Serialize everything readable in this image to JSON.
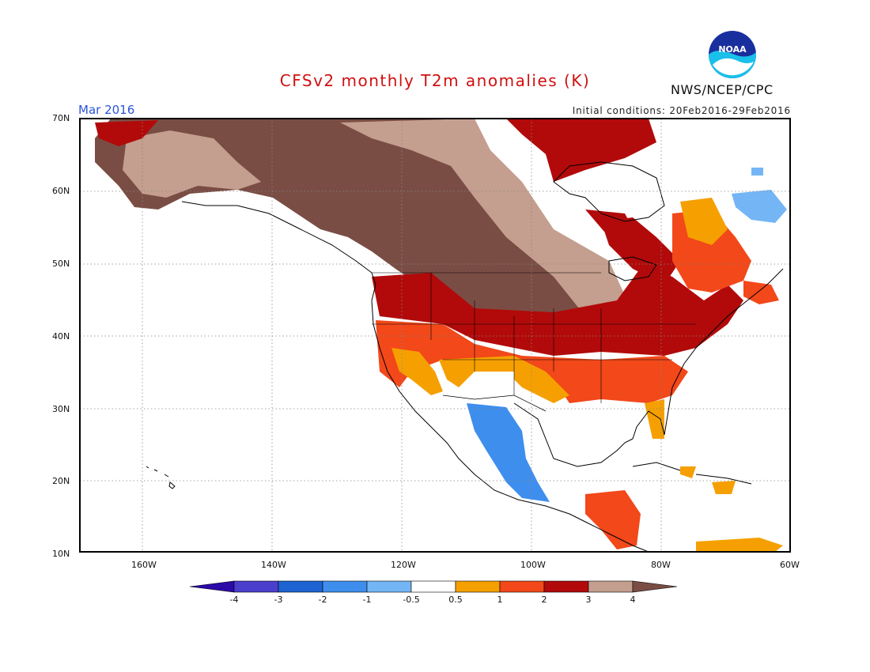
{
  "header": {
    "title": "CFSv2 monthly T2m anomalies (K)",
    "agency": "NWS/NCEP/CPC",
    "logo_text": "NOAA",
    "target_month": "Mar 2016",
    "initial_conditions": "Initial conditions: 20Feb2016-29Feb2016"
  },
  "axes": {
    "lat_labels": [
      "70N",
      "60N",
      "50N",
      "40N",
      "30N",
      "20N",
      "10N"
    ],
    "lon_labels": [
      "160W",
      "140W",
      "120W",
      "100W",
      "80W",
      "60W"
    ]
  },
  "legend": {
    "tick_labels": [
      "-4",
      "-3",
      "-2",
      "-1",
      "-0.5",
      "0.5",
      "1",
      "2",
      "3",
      "4"
    ],
    "colors": [
      "#2b0aa8",
      "#4a3ecc",
      "#1e63d2",
      "#3e8eee",
      "#74b6f5",
      "#ffffff",
      "#f5a000",
      "#f2481a",
      "#b20a0a",
      "#c49e8e",
      "#7a4d44"
    ]
  },
  "map_regions": {
    "strong_warm_north": "Alaska and northwest Canada shaded >4 K",
    "cool_region": "northwest Mexico shaded -1 to -2 K"
  }
}
